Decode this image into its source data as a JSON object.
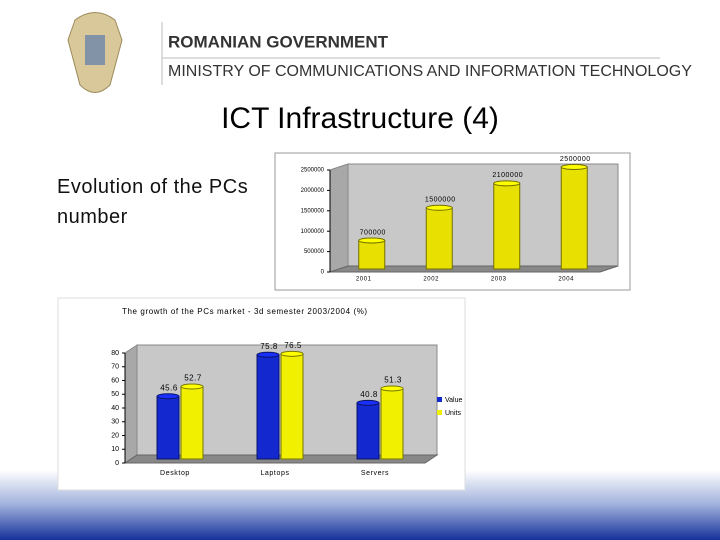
{
  "header": {
    "line1": "ROMANIAN GOVERNMENT",
    "line2": "MINISTRY OF COMMUNICATIONS AND INFORMATION TECHNOLOGY"
  },
  "title": "ICT Infrastructure (4)",
  "side_text": "Evolution of the PCs number",
  "chart_data": [
    {
      "type": "bar",
      "categories": [
        "2001",
        "2002",
        "2003",
        "2004"
      ],
      "values": [
        700000,
        1500000,
        2100000,
        2500000
      ],
      "color": "#e8e000",
      "ylim": [
        0,
        2500000
      ],
      "yticks": [
        0,
        500000,
        1000000,
        1500000,
        2000000,
        2500000
      ],
      "grid": false
    },
    {
      "type": "bar",
      "title": "The growth of the PCs market - 3d semester 2003/2004 (%)",
      "categories": [
        "Desktop",
        "Laptops",
        "Servers"
      ],
      "series": [
        {
          "name": "Value",
          "color": "#1428d0",
          "values": [
            45.6,
            75.8,
            40.8
          ]
        },
        {
          "name": "Units",
          "color": "#f0f000",
          "values": [
            52.7,
            76.5,
            51.3
          ]
        }
      ],
      "ylim": [
        0,
        80
      ],
      "yticks": [
        0,
        10,
        20,
        30,
        40,
        50,
        60,
        70,
        80
      ],
      "grid": false,
      "legend": "right"
    }
  ]
}
